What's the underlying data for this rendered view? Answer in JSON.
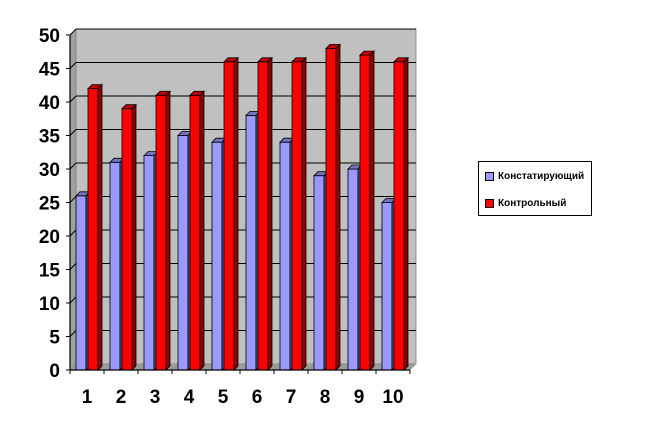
{
  "chart_data": {
    "type": "bar",
    "categories": [
      "1",
      "2",
      "3",
      "4",
      "5",
      "6",
      "7",
      "8",
      "9",
      "10"
    ],
    "series": [
      {
        "name": "Констатирующий",
        "values": [
          26,
          31,
          32,
          35,
          34,
          38,
          34,
          29,
          30,
          25
        ],
        "color": "#9999ff"
      },
      {
        "name": "Контрольный",
        "values": [
          42,
          39,
          41,
          41,
          46,
          46,
          46,
          48,
          47,
          46
        ],
        "color": "#ff0000"
      }
    ],
    "ylim": [
      0,
      50
    ],
    "yticks": [
      "0",
      "5",
      "10",
      "15",
      "20",
      "25",
      "30",
      "35",
      "40",
      "45",
      "50"
    ],
    "grid": true,
    "legend_position": "right",
    "title": "",
    "xlabel": "",
    "ylabel": "",
    "plot_background": "#c0c0c0"
  }
}
